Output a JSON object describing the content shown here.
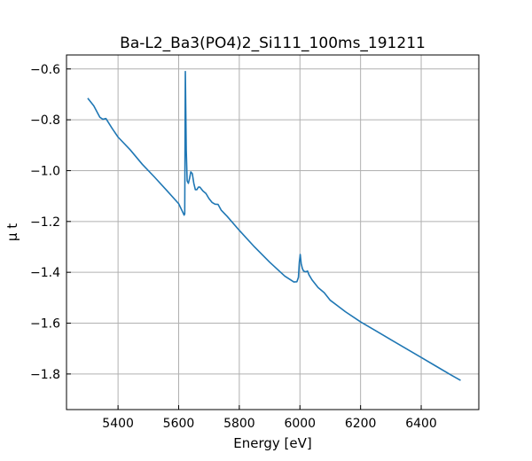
{
  "chart_data": {
    "type": "line",
    "title": "Ba-L2_Ba3(PO4)2_Si111_100ms_191211",
    "xlabel": "Energy [eV]",
    "ylabel": "μ t",
    "xlim": [
      5230,
      6590
    ],
    "ylim": [
      -1.94,
      -0.545
    ],
    "xticks": [
      5400,
      5600,
      5800,
      6000,
      6200,
      6400
    ],
    "yticks": [
      -1.8,
      -1.6,
      -1.4,
      -1.2,
      -1.0,
      -0.8,
      -0.6
    ],
    "xtick_labels": [
      "5400",
      "5600",
      "5800",
      "6000",
      "6200",
      "6400"
    ],
    "ytick_labels": [
      "−1.8",
      "−1.6",
      "−1.4",
      "−1.2",
      "−1.0",
      "−0.8",
      "−0.6"
    ],
    "grid": true,
    "series": [
      {
        "color": "#1f77b4",
        "x": [
          5300,
          5320,
          5340,
          5350,
          5360,
          5380,
          5400,
          5440,
          5480,
          5520,
          5560,
          5600,
          5612,
          5618,
          5620,
          5622,
          5625,
          5628,
          5632,
          5636,
          5640,
          5645,
          5650,
          5655,
          5660,
          5665,
          5670,
          5680,
          5690,
          5700,
          5710,
          5720,
          5730,
          5740,
          5760,
          5800,
          5850,
          5900,
          5950,
          5980,
          5990,
          5995,
          5998,
          6001,
          6004,
          6008,
          6012,
          6016,
          6020,
          6025,
          6030,
          6040,
          6060,
          6080,
          6100,
          6150,
          6200,
          6250,
          6300,
          6350,
          6400,
          6450,
          6500,
          6530
        ],
        "y": [
          -0.715,
          -0.745,
          -0.79,
          -0.798,
          -0.795,
          -0.833,
          -0.868,
          -0.918,
          -0.975,
          -1.025,
          -1.077,
          -1.13,
          -1.16,
          -1.175,
          -1.17,
          -0.61,
          -0.92,
          -1.04,
          -1.05,
          -1.03,
          -1.005,
          -1.012,
          -1.05,
          -1.075,
          -1.075,
          -1.065,
          -1.065,
          -1.08,
          -1.09,
          -1.11,
          -1.125,
          -1.132,
          -1.133,
          -1.155,
          -1.18,
          -1.235,
          -1.3,
          -1.36,
          -1.415,
          -1.438,
          -1.437,
          -1.42,
          -1.36,
          -1.33,
          -1.365,
          -1.385,
          -1.395,
          -1.397,
          -1.398,
          -1.395,
          -1.41,
          -1.43,
          -1.46,
          -1.48,
          -1.51,
          -1.555,
          -1.595,
          -1.63,
          -1.665,
          -1.7,
          -1.735,
          -1.77,
          -1.805,
          -1.825
        ]
      }
    ]
  }
}
